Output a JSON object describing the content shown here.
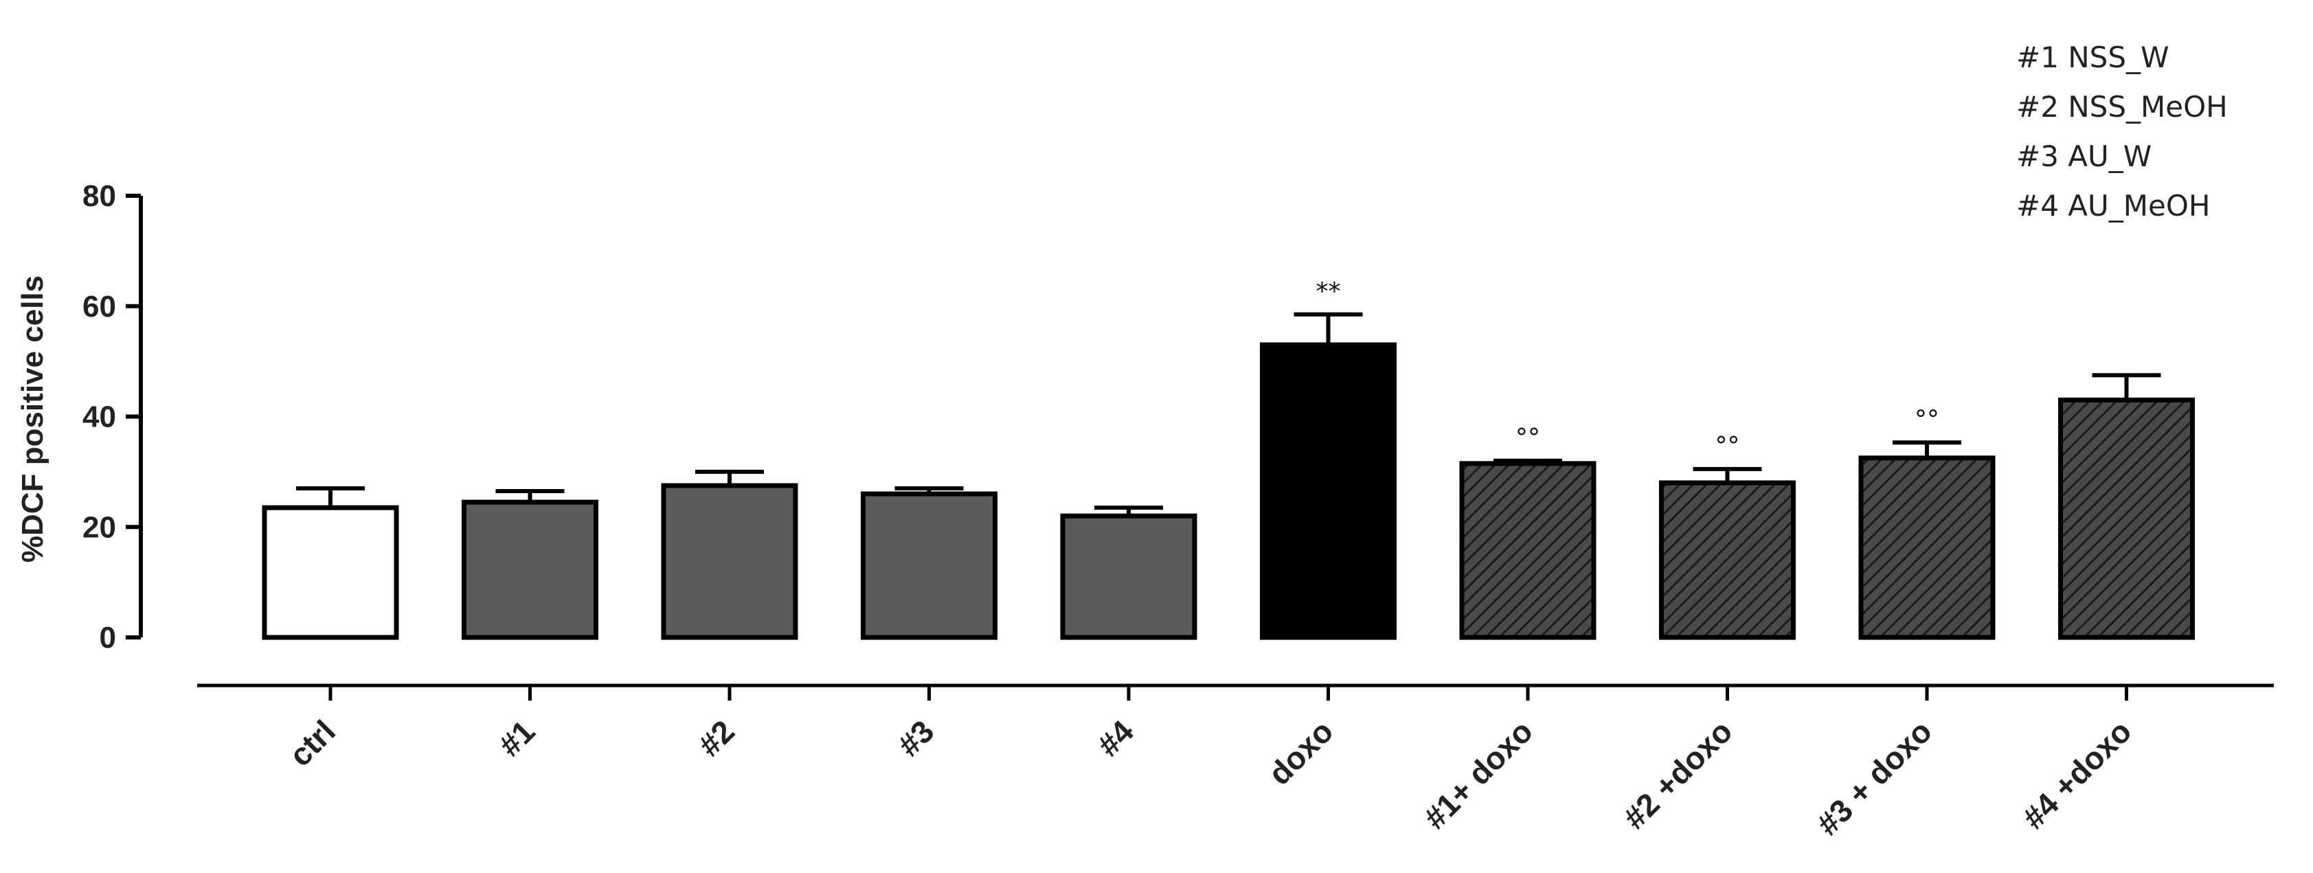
{
  "chart_data": {
    "type": "bar",
    "ylabel": "%DCF positive cells",
    "xlabel": "",
    "ylim": [
      0,
      80
    ],
    "yticks": [
      "0",
      "20",
      "40",
      "60",
      "80"
    ],
    "categories": [
      "ctrl",
      "#1",
      "#2",
      "#3",
      "#4",
      "doxo",
      "#1+ doxo",
      "#2 +doxo",
      "#3 + doxo",
      "#4 +doxo"
    ],
    "values": [
      23.5,
      24.5,
      27.5,
      26,
      22,
      53,
      31.5,
      28,
      32.5,
      43
    ],
    "errors": [
      3.5,
      2,
      2.5,
      1,
      1.5,
      5.5,
      0.5,
      2.5,
      2.8,
      4.5
    ],
    "fills": [
      "white",
      "gray",
      "gray",
      "gray",
      "gray",
      "black",
      "hatched",
      "hatched",
      "hatched",
      "hatched"
    ],
    "significance": [
      "",
      "",
      "",
      "",
      "",
      "**",
      "°°",
      "°°",
      "°°",
      ""
    ],
    "legend_position": "top-right",
    "grid": false
  },
  "legend": {
    "items": [
      "#1 NSS_W",
      "#2 NSS_MeOH",
      "#3 AU_W",
      "#4 AU_MeOH"
    ]
  },
  "colors": {
    "white_bar": "#ffffff",
    "gray_bar": "#5c5c5c",
    "black_bar": "#000000",
    "hatch_bg": "#4a4a4a",
    "hatch_line": "#1a1a1a",
    "axis": "#000000"
  }
}
